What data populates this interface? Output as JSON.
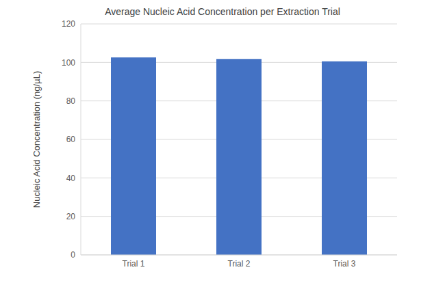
{
  "chart_data": {
    "type": "bar",
    "title": "Average Nucleic Acid Concentration per Extraction Trial",
    "y_label": "Nucleic Acid Concentration (ng/µL)",
    "categories": [
      "Trial 1",
      "Trial 2",
      "Trial 3"
    ],
    "values": [
      102.6,
      101.8,
      100.6
    ],
    "color": "#4472c4",
    "ylim": [
      0,
      120
    ],
    "yticks": [
      0,
      20,
      40,
      60,
      80,
      100,
      120
    ],
    "grid": true
  }
}
